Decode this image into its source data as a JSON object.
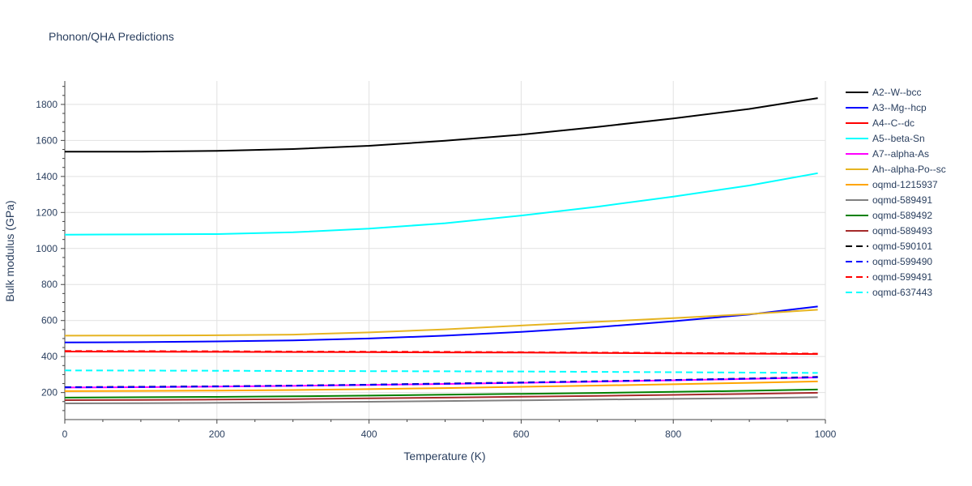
{
  "chart_data": {
    "type": "line",
    "title": "Phonon/QHA Predictions",
    "xlabel": "Temperature (K)",
    "ylabel": "Bulk modulus (GPa)",
    "xlim": [
      0,
      1000
    ],
    "ylim": [
      50,
      1930
    ],
    "xticks": [
      0,
      200,
      400,
      600,
      800,
      1000
    ],
    "yticks": [
      200,
      400,
      600,
      800,
      1000,
      1200,
      1400,
      1600,
      1800
    ],
    "grid": true,
    "legend_position": "right",
    "x": [
      0,
      100,
      200,
      300,
      400,
      500,
      600,
      700,
      800,
      900,
      990
    ],
    "series": [
      {
        "name": "A2--W--bcc",
        "color": "#000000",
        "dash": "solid",
        "values": [
          1538,
          1538,
          1542,
          1552,
          1570,
          1598,
          1632,
          1675,
          1722,
          1775,
          1835
        ]
      },
      {
        "name": "A3--Mg--hcp",
        "color": "#0000ff",
        "dash": "solid",
        "values": [
          478,
          480,
          484,
          490,
          500,
          516,
          537,
          563,
          596,
          634,
          678
        ]
      },
      {
        "name": "A4--C--dc",
        "color": "#ff0000",
        "dash": "solid",
        "values": [
          428,
          427,
          426,
          425,
          424,
          423,
          422,
          420,
          418,
          416,
          414
        ]
      },
      {
        "name": "A5--beta-Sn",
        "color": "#00ffff",
        "dash": "solid",
        "values": [
          1077,
          1078,
          1080,
          1090,
          1110,
          1140,
          1183,
          1232,
          1288,
          1350,
          1418
        ]
      },
      {
        "name": "A7--alpha-As",
        "color": "#ff00ff",
        "dash": "solid",
        "values": [
          228,
          230,
          233,
          237,
          242,
          248,
          254,
          261,
          268,
          276,
          284
        ]
      },
      {
        "name": "Ah--alpha-Po--sc",
        "color": "#e6b422",
        "dash": "solid",
        "values": [
          516,
          517,
          518,
          522,
          534,
          551,
          572,
          593,
          613,
          636,
          660
        ]
      },
      {
        "name": "oqmd-1215937",
        "color": "#ffa500",
        "dash": "solid",
        "values": [
          208,
          209,
          211,
          214,
          219,
          225,
          232,
          239,
          246,
          254,
          262
        ]
      },
      {
        "name": "oqmd-589491",
        "color": "#808080",
        "dash": "solid",
        "values": [
          140,
          141,
          143,
          146,
          149,
          153,
          157,
          161,
          165,
          169,
          174
        ]
      },
      {
        "name": "oqmd-589492",
        "color": "#008000",
        "dash": "solid",
        "values": [
          172,
          174,
          176,
          179,
          183,
          188,
          193,
          198,
          204,
          210,
          217
        ]
      },
      {
        "name": "oqmd-589493",
        "color": "#a52a2a",
        "dash": "solid",
        "values": [
          158,
          159,
          161,
          164,
          168,
          172,
          177,
          182,
          187,
          193,
          199
        ]
      },
      {
        "name": "oqmd-590101",
        "color": "#000000",
        "dash": "dash",
        "values": [
          230,
          232,
          235,
          239,
          244,
          250,
          256,
          263,
          270,
          278,
          287
        ]
      },
      {
        "name": "oqmd-599490",
        "color": "#0000ff",
        "dash": "dash",
        "values": [
          229,
          231,
          234,
          238,
          243,
          249,
          255,
          262,
          269,
          277,
          285
        ]
      },
      {
        "name": "oqmd-599491",
        "color": "#ff0000",
        "dash": "dash",
        "values": [
          431,
          430,
          429,
          428,
          427,
          426,
          424,
          422,
          420,
          418,
          416
        ]
      },
      {
        "name": "oqmd-637443",
        "color": "#00ffff",
        "dash": "dash",
        "values": [
          323,
          322,
          321,
          320,
          319,
          318,
          317,
          315,
          313,
          311,
          309
        ]
      }
    ]
  }
}
